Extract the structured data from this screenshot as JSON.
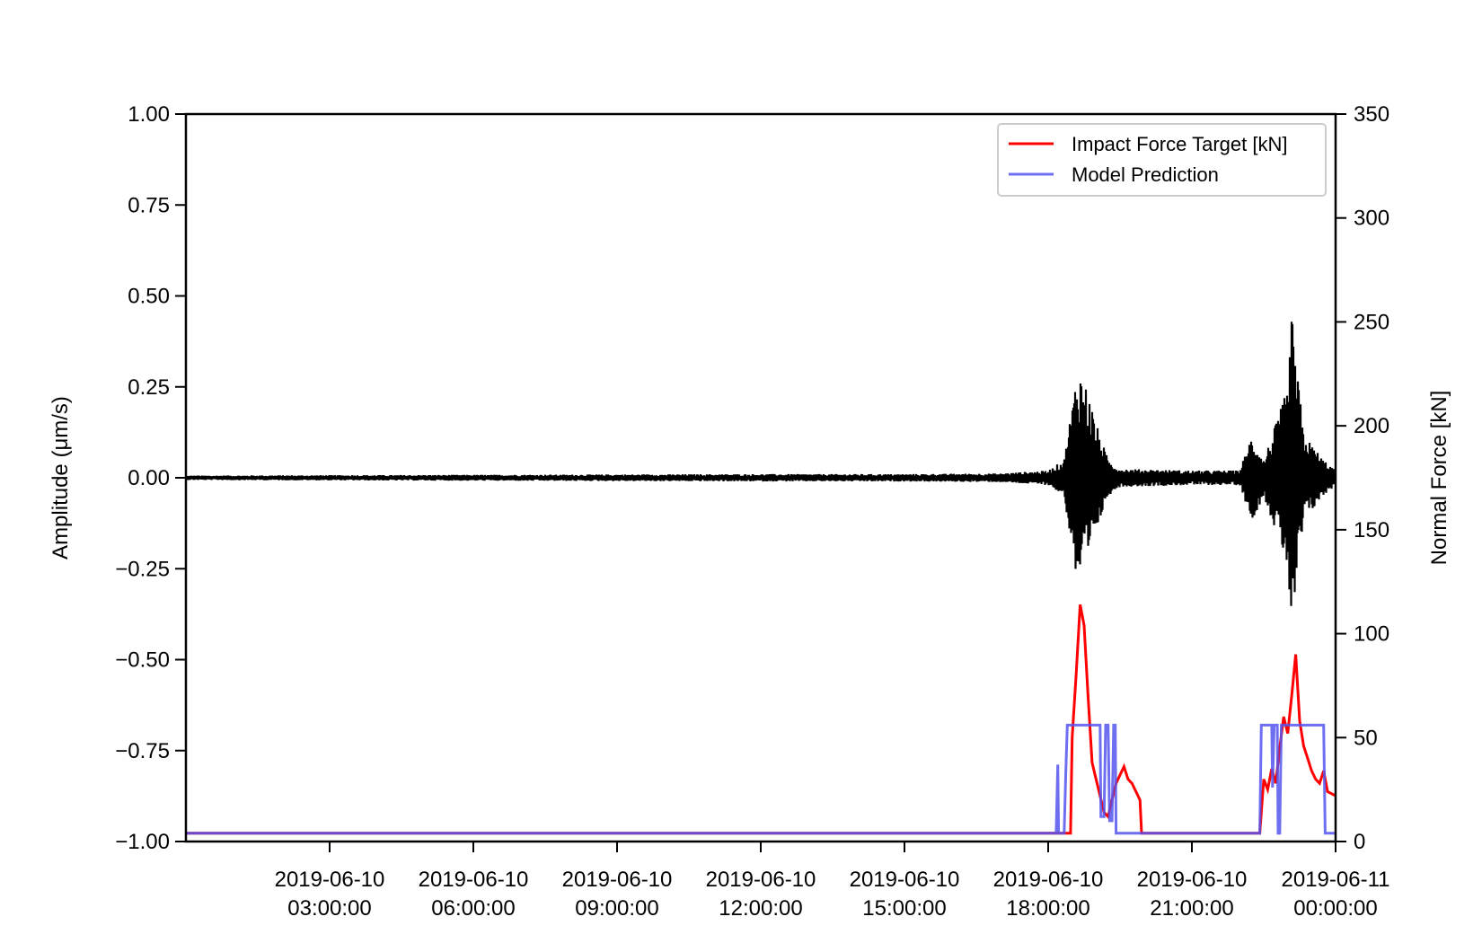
{
  "chart_data": {
    "type": "line",
    "title": "",
    "xlabel": "",
    "ylabel_left": "Amplitude (μm/s)",
    "ylabel_right": "Normal Force [kN]",
    "x_range": [
      "2019-06-10 00:00:00",
      "2019-06-11 00:00:00"
    ],
    "xticks": [
      {
        "t": "2019-06-10 03:00:00",
        "line1": "2019-06-10",
        "line2": "03:00:00"
      },
      {
        "t": "2019-06-10 06:00:00",
        "line1": "2019-06-10",
        "line2": "06:00:00"
      },
      {
        "t": "2019-06-10 09:00:00",
        "line1": "2019-06-10",
        "line2": "09:00:00"
      },
      {
        "t": "2019-06-10 12:00:00",
        "line1": "2019-06-10",
        "line2": "12:00:00"
      },
      {
        "t": "2019-06-10 15:00:00",
        "line1": "2019-06-10",
        "line2": "15:00:00"
      },
      {
        "t": "2019-06-10 18:00:00",
        "line1": "2019-06-10",
        "line2": "18:00:00"
      },
      {
        "t": "2019-06-10 21:00:00",
        "line1": "2019-06-10",
        "line2": "21:00:00"
      },
      {
        "t": "2019-06-11 00:00:00",
        "line1": "2019-06-11",
        "line2": "00:00:00"
      }
    ],
    "ylim_left": [
      -1.0,
      1.0
    ],
    "yticks_left": [
      "1.00",
      "0.75",
      "0.50",
      "0.25",
      "0.00",
      "−0.25",
      "−0.50",
      "−0.75",
      "−1.00"
    ],
    "ylim_right": [
      0,
      350
    ],
    "yticks_right": [
      "350",
      "300",
      "250",
      "200",
      "150",
      "100",
      "50",
      "0"
    ],
    "grid": false,
    "legend_position": "top-right",
    "series": [
      {
        "name": "Amplitude",
        "axis": "left",
        "color": "#000000",
        "style": "seismic-trace",
        "envelope": [
          [
            "2019-06-10 00:00:00",
            0.006
          ],
          [
            "2019-06-10 03:00:00",
            0.007
          ],
          [
            "2019-06-10 06:00:00",
            0.008
          ],
          [
            "2019-06-10 09:00:00",
            0.009
          ],
          [
            "2019-06-10 12:00:00",
            0.01
          ],
          [
            "2019-06-10 15:00:00",
            0.01
          ],
          [
            "2019-06-10 17:00:00",
            0.012
          ],
          [
            "2019-06-10 18:00:00",
            0.02
          ],
          [
            "2019-06-10 18:20:00",
            0.05
          ],
          [
            "2019-06-10 18:35:00",
            0.28
          ],
          [
            "2019-06-10 18:40:00",
            0.3
          ],
          [
            "2019-06-10 18:50:00",
            0.24
          ],
          [
            "2019-06-10 19:00:00",
            0.15
          ],
          [
            "2019-06-10 19:15:00",
            0.05
          ],
          [
            "2019-06-10 19:30:00",
            0.025
          ],
          [
            "2019-06-10 21:00:00",
            0.02
          ],
          [
            "2019-06-10 22:00:00",
            0.02
          ],
          [
            "2019-06-10 22:15:00",
            0.12
          ],
          [
            "2019-06-10 22:30:00",
            0.05
          ],
          [
            "2019-06-10 22:50:00",
            0.18
          ],
          [
            "2019-06-10 23:00:00",
            0.25
          ],
          [
            "2019-06-10 23:05:00",
            0.45
          ],
          [
            "2019-06-10 23:20:00",
            0.12
          ],
          [
            "2019-06-10 23:45:00",
            0.05
          ],
          [
            "2019-06-11 00:00:00",
            0.02
          ]
        ]
      },
      {
        "name": "Impact Force Target [kN]",
        "axis": "right",
        "color": "#ff0000",
        "points": [
          [
            "2019-06-10 00:00:00",
            4
          ],
          [
            "2019-06-10 18:25:00",
            4
          ],
          [
            "2019-06-10 18:28:00",
            4
          ],
          [
            "2019-06-10 18:30:00",
            50
          ],
          [
            "2019-06-10 18:35:00",
            80
          ],
          [
            "2019-06-10 18:40:00",
            114
          ],
          [
            "2019-06-10 18:45:00",
            104
          ],
          [
            "2019-06-10 18:50:00",
            70
          ],
          [
            "2019-06-10 18:55:00",
            38
          ],
          [
            "2019-06-10 19:00:00",
            30
          ],
          [
            "2019-06-10 19:05:00",
            22
          ],
          [
            "2019-06-10 19:10:00",
            14
          ],
          [
            "2019-06-10 19:15:00",
            12
          ],
          [
            "2019-06-10 19:20:00",
            20
          ],
          [
            "2019-06-10 19:25:00",
            28
          ],
          [
            "2019-06-10 19:30:00",
            32
          ],
          [
            "2019-06-10 19:35:00",
            36
          ],
          [
            "2019-06-10 19:40:00",
            30
          ],
          [
            "2019-06-10 19:45:00",
            28
          ],
          [
            "2019-06-10 19:50:00",
            24
          ],
          [
            "2019-06-10 19:55:00",
            20
          ],
          [
            "2019-06-10 19:57:00",
            4
          ],
          [
            "2019-06-10 22:20:00",
            4
          ],
          [
            "2019-06-10 22:25:00",
            4
          ],
          [
            "2019-06-10 22:30:00",
            30
          ],
          [
            "2019-06-10 22:35:00",
            25
          ],
          [
            "2019-06-10 22:40:00",
            35
          ],
          [
            "2019-06-10 22:45:00",
            28
          ],
          [
            "2019-06-10 22:50:00",
            45
          ],
          [
            "2019-06-10 22:55:00",
            60
          ],
          [
            "2019-06-10 23:00:00",
            52
          ],
          [
            "2019-06-10 23:05:00",
            70
          ],
          [
            "2019-06-10 23:10:00",
            90
          ],
          [
            "2019-06-10 23:15:00",
            58
          ],
          [
            "2019-06-10 23:20:00",
            46
          ],
          [
            "2019-06-10 23:25:00",
            40
          ],
          [
            "2019-06-10 23:30:00",
            34
          ],
          [
            "2019-06-10 23:35:00",
            30
          ],
          [
            "2019-06-10 23:40:00",
            28
          ],
          [
            "2019-06-10 23:45:00",
            34
          ],
          [
            "2019-06-10 23:50:00",
            24
          ],
          [
            "2019-06-11 00:00:00",
            22
          ]
        ]
      },
      {
        "name": "Model Prediction",
        "axis": "right",
        "color": "#5555ee",
        "points": [
          [
            "2019-06-10 00:00:00",
            4
          ],
          [
            "2019-06-10 18:10:00",
            4
          ],
          [
            "2019-06-10 18:12:00",
            37
          ],
          [
            "2019-06-10 18:13:00",
            4
          ],
          [
            "2019-06-10 18:20:00",
            4
          ],
          [
            "2019-06-10 18:22:00",
            33
          ],
          [
            "2019-06-10 18:24:00",
            56
          ],
          [
            "2019-06-10 19:05:00",
            56
          ],
          [
            "2019-06-10 19:06:00",
            12
          ],
          [
            "2019-06-10 19:10:00",
            12
          ],
          [
            "2019-06-10 19:12:00",
            56
          ],
          [
            "2019-06-10 19:15:00",
            56
          ],
          [
            "2019-06-10 19:17:00",
            10
          ],
          [
            "2019-06-10 19:20:00",
            10
          ],
          [
            "2019-06-10 19:22:00",
            56
          ],
          [
            "2019-06-10 19:24:00",
            56
          ],
          [
            "2019-06-10 19:25:00",
            4
          ],
          [
            "2019-06-10 22:25:00",
            4
          ],
          [
            "2019-06-10 22:27:00",
            56
          ],
          [
            "2019-06-10 22:40:00",
            56
          ],
          [
            "2019-06-10 22:41:00",
            26
          ],
          [
            "2019-06-10 22:43:00",
            56
          ],
          [
            "2019-06-10 22:47:00",
            56
          ],
          [
            "2019-06-10 22:48:00",
            4
          ],
          [
            "2019-06-10 22:50:00",
            4
          ],
          [
            "2019-06-10 22:52:00",
            56
          ],
          [
            "2019-06-10 23:45:00",
            56
          ],
          [
            "2019-06-10 23:47:00",
            4
          ],
          [
            "2019-06-11 00:00:00",
            4
          ]
        ]
      }
    ],
    "legend": [
      {
        "label": "Impact Force Target [kN]",
        "color": "#ff0000"
      },
      {
        "label": "Model Prediction",
        "color": "#5555ee"
      }
    ]
  }
}
